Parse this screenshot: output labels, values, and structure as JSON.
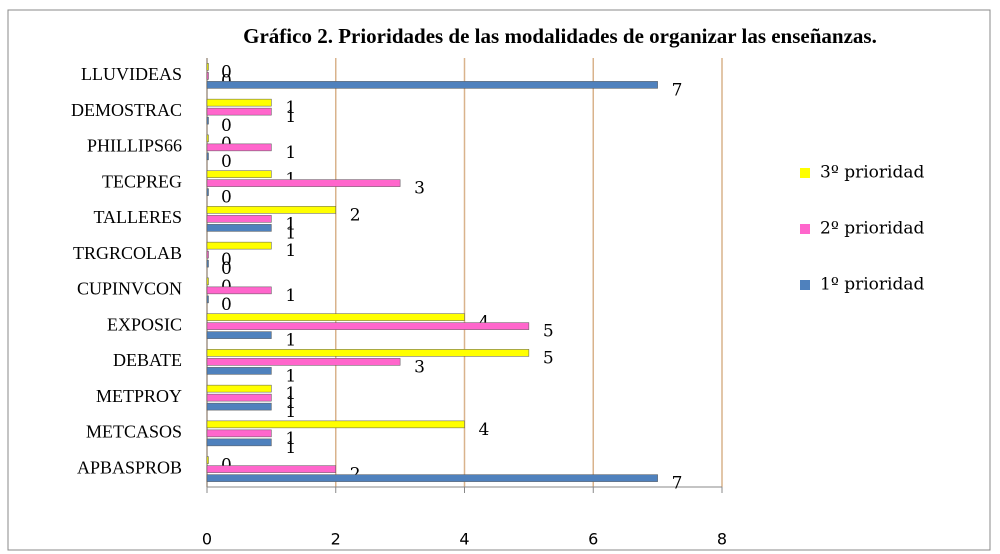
{
  "chart_data": {
    "type": "bar",
    "orientation": "horizontal",
    "title": "Gráfico 2. Prioridades de las modalidades de organizar las enseñanzas.",
    "categories": [
      "LLUVIDEAS",
      "DEMOSTRAC",
      "PHILLIPS66",
      "TECPREG",
      "TALLERES",
      "TRGRCOLAB",
      "CUPINVCON",
      "EXPOSIC",
      "DEBATE",
      "METPROY",
      "METCASOS",
      "APBASPROB"
    ],
    "series": [
      {
        "name": "3º prioridad",
        "color": "#ffff00",
        "values": [
          0,
          1,
          0,
          1,
          2,
          1,
          0,
          4,
          5,
          1,
          4,
          0
        ]
      },
      {
        "name": "2º prioridad",
        "color": "#ff66cc",
        "values": [
          0,
          1,
          1,
          3,
          1,
          0,
          1,
          5,
          3,
          1,
          1,
          2
        ]
      },
      {
        "name": "1º prioridad",
        "color": "#4f81bd",
        "values": [
          7,
          0,
          0,
          0,
          1,
          0,
          0,
          1,
          1,
          1,
          1,
          7
        ]
      }
    ],
    "xlim": [
      0,
      8
    ],
    "xticks": [
      0,
      2,
      4,
      6,
      8
    ],
    "grid": true,
    "legend": "right"
  }
}
